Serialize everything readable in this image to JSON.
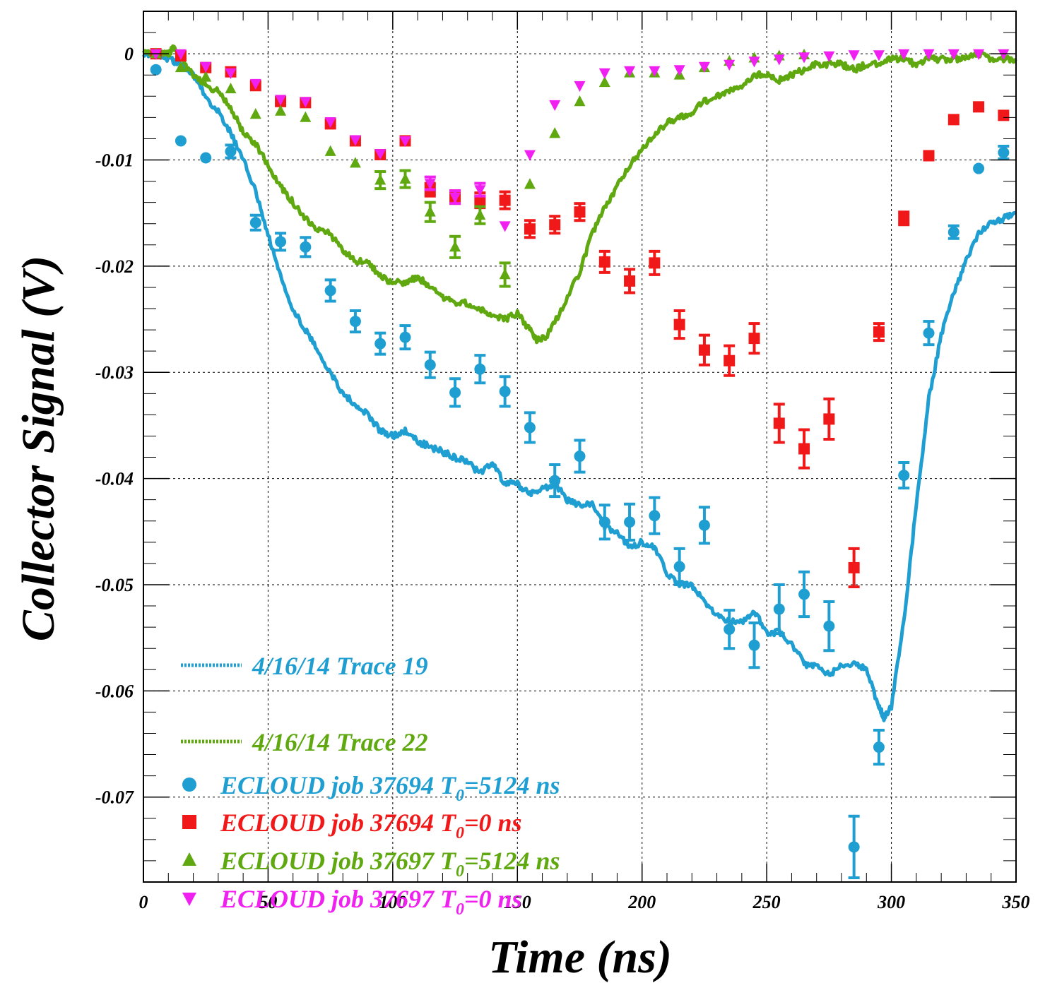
{
  "chart_data": {
    "type": "scatter",
    "xlabel": "Time (ns)",
    "ylabel": "Collector Signal (V)",
    "xlim": [
      0,
      350
    ],
    "ylim": [
      -0.078,
      0.004
    ],
    "xticks": [
      0,
      50,
      100,
      150,
      200,
      250,
      300,
      350
    ],
    "xtick_labels": [
      "0",
      "50",
      "100",
      "150",
      "200",
      "250",
      "300",
      "350"
    ],
    "yticks": [
      0,
      -0.01,
      -0.02,
      -0.03,
      -0.04,
      -0.05,
      -0.06,
      -0.07
    ],
    "ytick_labels": [
      "0",
      "-0.01",
      "-0.02",
      "-0.03",
      "-0.04",
      "-0.05",
      "-0.06",
      "-0.07"
    ],
    "grid": true,
    "legend_position": "bottom-left",
    "lines": [
      {
        "name": "4/16/14 Trace 19",
        "color": "#1f9ed1",
        "x": [
          0,
          5,
          10,
          15,
          20,
          25,
          30,
          35,
          40,
          45,
          50,
          55,
          60,
          65,
          70,
          75,
          80,
          85,
          90,
          95,
          100,
          105,
          110,
          115,
          120,
          125,
          130,
          135,
          140,
          145,
          150,
          155,
          160,
          165,
          170,
          175,
          180,
          185,
          190,
          195,
          200,
          205,
          210,
          215,
          220,
          225,
          230,
          235,
          240,
          245,
          250,
          255,
          260,
          265,
          270,
          275,
          280,
          285,
          290,
          295,
          297,
          300,
          305,
          310,
          315,
          320,
          325,
          330,
          335,
          340,
          345,
          350
        ],
        "y": [
          0,
          0,
          -0.0005,
          -0.001,
          -0.002,
          -0.004,
          -0.0055,
          -0.0075,
          -0.01,
          -0.013,
          -0.017,
          -0.021,
          -0.024,
          -0.026,
          -0.028,
          -0.03,
          -0.032,
          -0.033,
          -0.034,
          -0.0355,
          -0.036,
          -0.0355,
          -0.0365,
          -0.037,
          -0.0375,
          -0.038,
          -0.0385,
          -0.0395,
          -0.0385,
          -0.0405,
          -0.0405,
          -0.0415,
          -0.041,
          -0.0405,
          -0.042,
          -0.0425,
          -0.0425,
          -0.0445,
          -0.045,
          -0.0465,
          -0.046,
          -0.0465,
          -0.049,
          -0.05,
          -0.05,
          -0.0515,
          -0.053,
          -0.0535,
          -0.0535,
          -0.0525,
          -0.0545,
          -0.0545,
          -0.0555,
          -0.0575,
          -0.0575,
          -0.0585,
          -0.0575,
          -0.0575,
          -0.058,
          -0.0615,
          -0.0625,
          -0.0615,
          -0.0535,
          -0.0425,
          -0.0325,
          -0.0265,
          -0.0225,
          -0.0195,
          -0.017,
          -0.016,
          -0.0155,
          -0.015
        ]
      },
      {
        "name": "4/16/14 Trace 22",
        "color": "#5fa80f",
        "x": [
          0,
          5,
          10,
          12,
          15,
          20,
          25,
          30,
          35,
          40,
          45,
          50,
          55,
          60,
          65,
          70,
          75,
          80,
          85,
          90,
          95,
          100,
          105,
          110,
          115,
          120,
          125,
          130,
          135,
          140,
          145,
          150,
          155,
          158,
          162,
          168,
          175,
          180,
          185,
          190,
          195,
          200,
          205,
          210,
          215,
          220,
          225,
          230,
          235,
          240,
          245,
          250,
          255,
          260,
          265,
          270,
          275,
          280,
          285,
          290,
          295,
          300,
          305,
          310,
          315,
          320,
          325,
          330,
          335,
          340,
          345,
          350
        ],
        "y": [
          0,
          0,
          0,
          0.0005,
          -0.0005,
          -0.002,
          -0.003,
          -0.0035,
          -0.005,
          -0.0075,
          -0.0085,
          -0.0105,
          -0.0125,
          -0.014,
          -0.0155,
          -0.0165,
          -0.017,
          -0.0185,
          -0.0195,
          -0.0195,
          -0.021,
          -0.0215,
          -0.0215,
          -0.021,
          -0.022,
          -0.023,
          -0.0235,
          -0.0235,
          -0.024,
          -0.0245,
          -0.025,
          -0.0245,
          -0.026,
          -0.027,
          -0.0265,
          -0.024,
          -0.0205,
          -0.017,
          -0.0145,
          -0.0125,
          -0.0105,
          -0.009,
          -0.0075,
          -0.0065,
          -0.006,
          -0.0055,
          -0.0045,
          -0.004,
          -0.0035,
          -0.003,
          -0.002,
          -0.002,
          -0.0025,
          -0.002,
          -0.0015,
          -0.001,
          -0.001,
          -0.001,
          -0.0015,
          -0.001,
          -0.001,
          -0.0005,
          -0.0005,
          -0.001,
          -0.0005,
          -0.0005,
          -0.0005,
          -0.0005,
          0,
          -0.0005,
          -0.0005,
          -0.0005
        ]
      }
    ],
    "series": [
      {
        "name": "ECLOUD job 37694 T0=5124 ns",
        "legend_prefix": "ECLOUD job 37694 T",
        "legend_sub": "0",
        "legend_suffix": "=5124 ns",
        "marker": "circle",
        "color": "#1f9ed1",
        "x": [
          5,
          15,
          25,
          35,
          45,
          55,
          65,
          75,
          85,
          95,
          105,
          115,
          125,
          135,
          145,
          155,
          165,
          175,
          185,
          195,
          205,
          215,
          225,
          235,
          245,
          255,
          265,
          275,
          285,
          295,
          305,
          315,
          325,
          335,
          345
        ],
        "y": [
          -0.0015,
          -0.0082,
          -0.0098,
          -0.0092,
          -0.0159,
          -0.0177,
          -0.0182,
          -0.0223,
          -0.0252,
          -0.0273,
          -0.0267,
          -0.0293,
          -0.0319,
          -0.0297,
          -0.0318,
          -0.0352,
          -0.0402,
          -0.0379,
          -0.0441,
          -0.0441,
          -0.0435,
          -0.0483,
          -0.0444,
          -0.0542,
          -0.0557,
          -0.0523,
          -0.0509,
          -0.0539,
          -0.0747,
          -0.0653,
          -0.0397,
          -0.0263,
          -0.0168,
          -0.0108,
          -0.0093
        ],
        "err": [
          0,
          0,
          0,
          0.0006,
          0.0007,
          0.0008,
          0.0009,
          0.001,
          0.001,
          0.001,
          0.0011,
          0.0012,
          0.0013,
          0.0013,
          0.0014,
          0.0014,
          0.0015,
          0.0015,
          0.0016,
          0.0017,
          0.0017,
          0.0017,
          0.0017,
          0.0018,
          0.0021,
          0.0023,
          0.0021,
          0.0023,
          0.0029,
          0.0016,
          0.0012,
          0.0011,
          0.0006,
          0,
          0.0006
        ]
      },
      {
        "name": "ECLOUD job 37694 T0=0 ns",
        "legend_prefix": "ECLOUD job 37694 T",
        "legend_sub": "0",
        "legend_suffix": "=0 ns",
        "marker": "square",
        "color": "#f01818",
        "x": [
          5,
          15,
          25,
          35,
          45,
          55,
          65,
          75,
          85,
          95,
          105,
          115,
          125,
          135,
          145,
          155,
          165,
          175,
          185,
          195,
          205,
          215,
          225,
          235,
          245,
          255,
          265,
          275,
          285,
          295,
          305,
          315,
          325,
          335,
          345
        ],
        "y": [
          0,
          -0.0002,
          -0.0013,
          -0.0017,
          -0.003,
          -0.0045,
          -0.0046,
          -0.0066,
          -0.0082,
          -0.0095,
          -0.0082,
          -0.0128,
          -0.0135,
          -0.0138,
          -0.0138,
          -0.0165,
          -0.0161,
          -0.0149,
          -0.0196,
          -0.0214,
          -0.0197,
          -0.0255,
          -0.0279,
          -0.0289,
          -0.0268,
          -0.0348,
          -0.0372,
          -0.0344,
          -0.0484,
          -0.0262,
          -0.0155,
          -0.0096,
          -0.0062,
          -0.005,
          -0.0058
        ],
        "err": [
          0,
          0,
          0,
          0,
          0,
          0,
          0,
          0,
          0,
          0,
          0,
          0.0006,
          0.0006,
          0.0007,
          0.0008,
          0.0008,
          0.0008,
          0.0008,
          0.001,
          0.0011,
          0.0011,
          0.0013,
          0.0014,
          0.0014,
          0.0014,
          0.0018,
          0.0018,
          0.0019,
          0.0018,
          0.0008,
          0.0006,
          0,
          0,
          0,
          0
        ]
      },
      {
        "name": "ECLOUD job 37697 T0=5124 ns",
        "legend_prefix": "ECLOUD job 37697 T",
        "legend_sub": "0",
        "legend_suffix": "=5124 ns",
        "marker": "triangle-up",
        "color": "#5fa80f",
        "x": [
          5,
          15,
          25,
          35,
          45,
          55,
          65,
          75,
          85,
          95,
          105,
          115,
          125,
          135,
          145,
          155,
          165,
          175,
          185,
          195,
          205,
          215,
          225,
          235,
          245,
          255,
          265
        ],
        "y": [
          0,
          -0.0013,
          -0.0022,
          -0.0033,
          -0.0057,
          -0.0054,
          -0.006,
          -0.0092,
          -0.0103,
          -0.0119,
          -0.0118,
          -0.0149,
          -0.0182,
          -0.0152,
          -0.0208,
          -0.0123,
          -0.0075,
          -0.0045,
          -0.0027,
          -0.0018,
          -0.0018,
          -0.002,
          -0.0013,
          -0.0007,
          -0.0004,
          -0.0002,
          -0.0001
        ],
        "err": [
          0,
          0,
          0,
          0,
          0,
          0,
          0,
          0,
          0,
          0.0008,
          0.0008,
          0.0009,
          0.001,
          0.0008,
          0.0011,
          0,
          0,
          0,
          0,
          0,
          0,
          0,
          0,
          0,
          0,
          0,
          0
        ]
      },
      {
        "name": "ECLOUD job 37697 T0=0 ns",
        "legend_prefix": "ECLOUD job 37697 T",
        "legend_sub": "0",
        "legend_suffix": "=0 ns",
        "marker": "triangle-down",
        "color": "#f020f0",
        "x": [
          5,
          15,
          25,
          35,
          45,
          55,
          65,
          75,
          85,
          95,
          105,
          115,
          125,
          135,
          145,
          155,
          165,
          175,
          185,
          195,
          205,
          215,
          225,
          235,
          245,
          255,
          265,
          275,
          285,
          295,
          305,
          315,
          325,
          335,
          345
        ],
        "y": [
          0,
          0,
          -0.0012,
          -0.0018,
          -0.0028,
          -0.0043,
          -0.0045,
          -0.0064,
          -0.0081,
          -0.0094,
          -0.0082,
          -0.0122,
          -0.0135,
          -0.0128,
          -0.0162,
          -0.0095,
          -0.0048,
          -0.003,
          -0.0018,
          -0.0016,
          -0.0016,
          -0.0015,
          -0.0012,
          -0.001,
          -0.0007,
          -0.0005,
          -0.0003,
          -0.0002,
          -0.0001,
          -0.0001,
          0,
          0,
          0,
          0,
          0
        ],
        "err": [
          0,
          0,
          0,
          0,
          0,
          0,
          0,
          0,
          0,
          0,
          0,
          0.0006,
          0.0006,
          0.0006,
          0,
          0,
          0,
          0,
          0,
          0,
          0,
          0,
          0,
          0,
          0,
          0,
          0,
          0,
          0,
          0,
          0,
          0,
          0,
          0,
          0
        ]
      }
    ]
  }
}
